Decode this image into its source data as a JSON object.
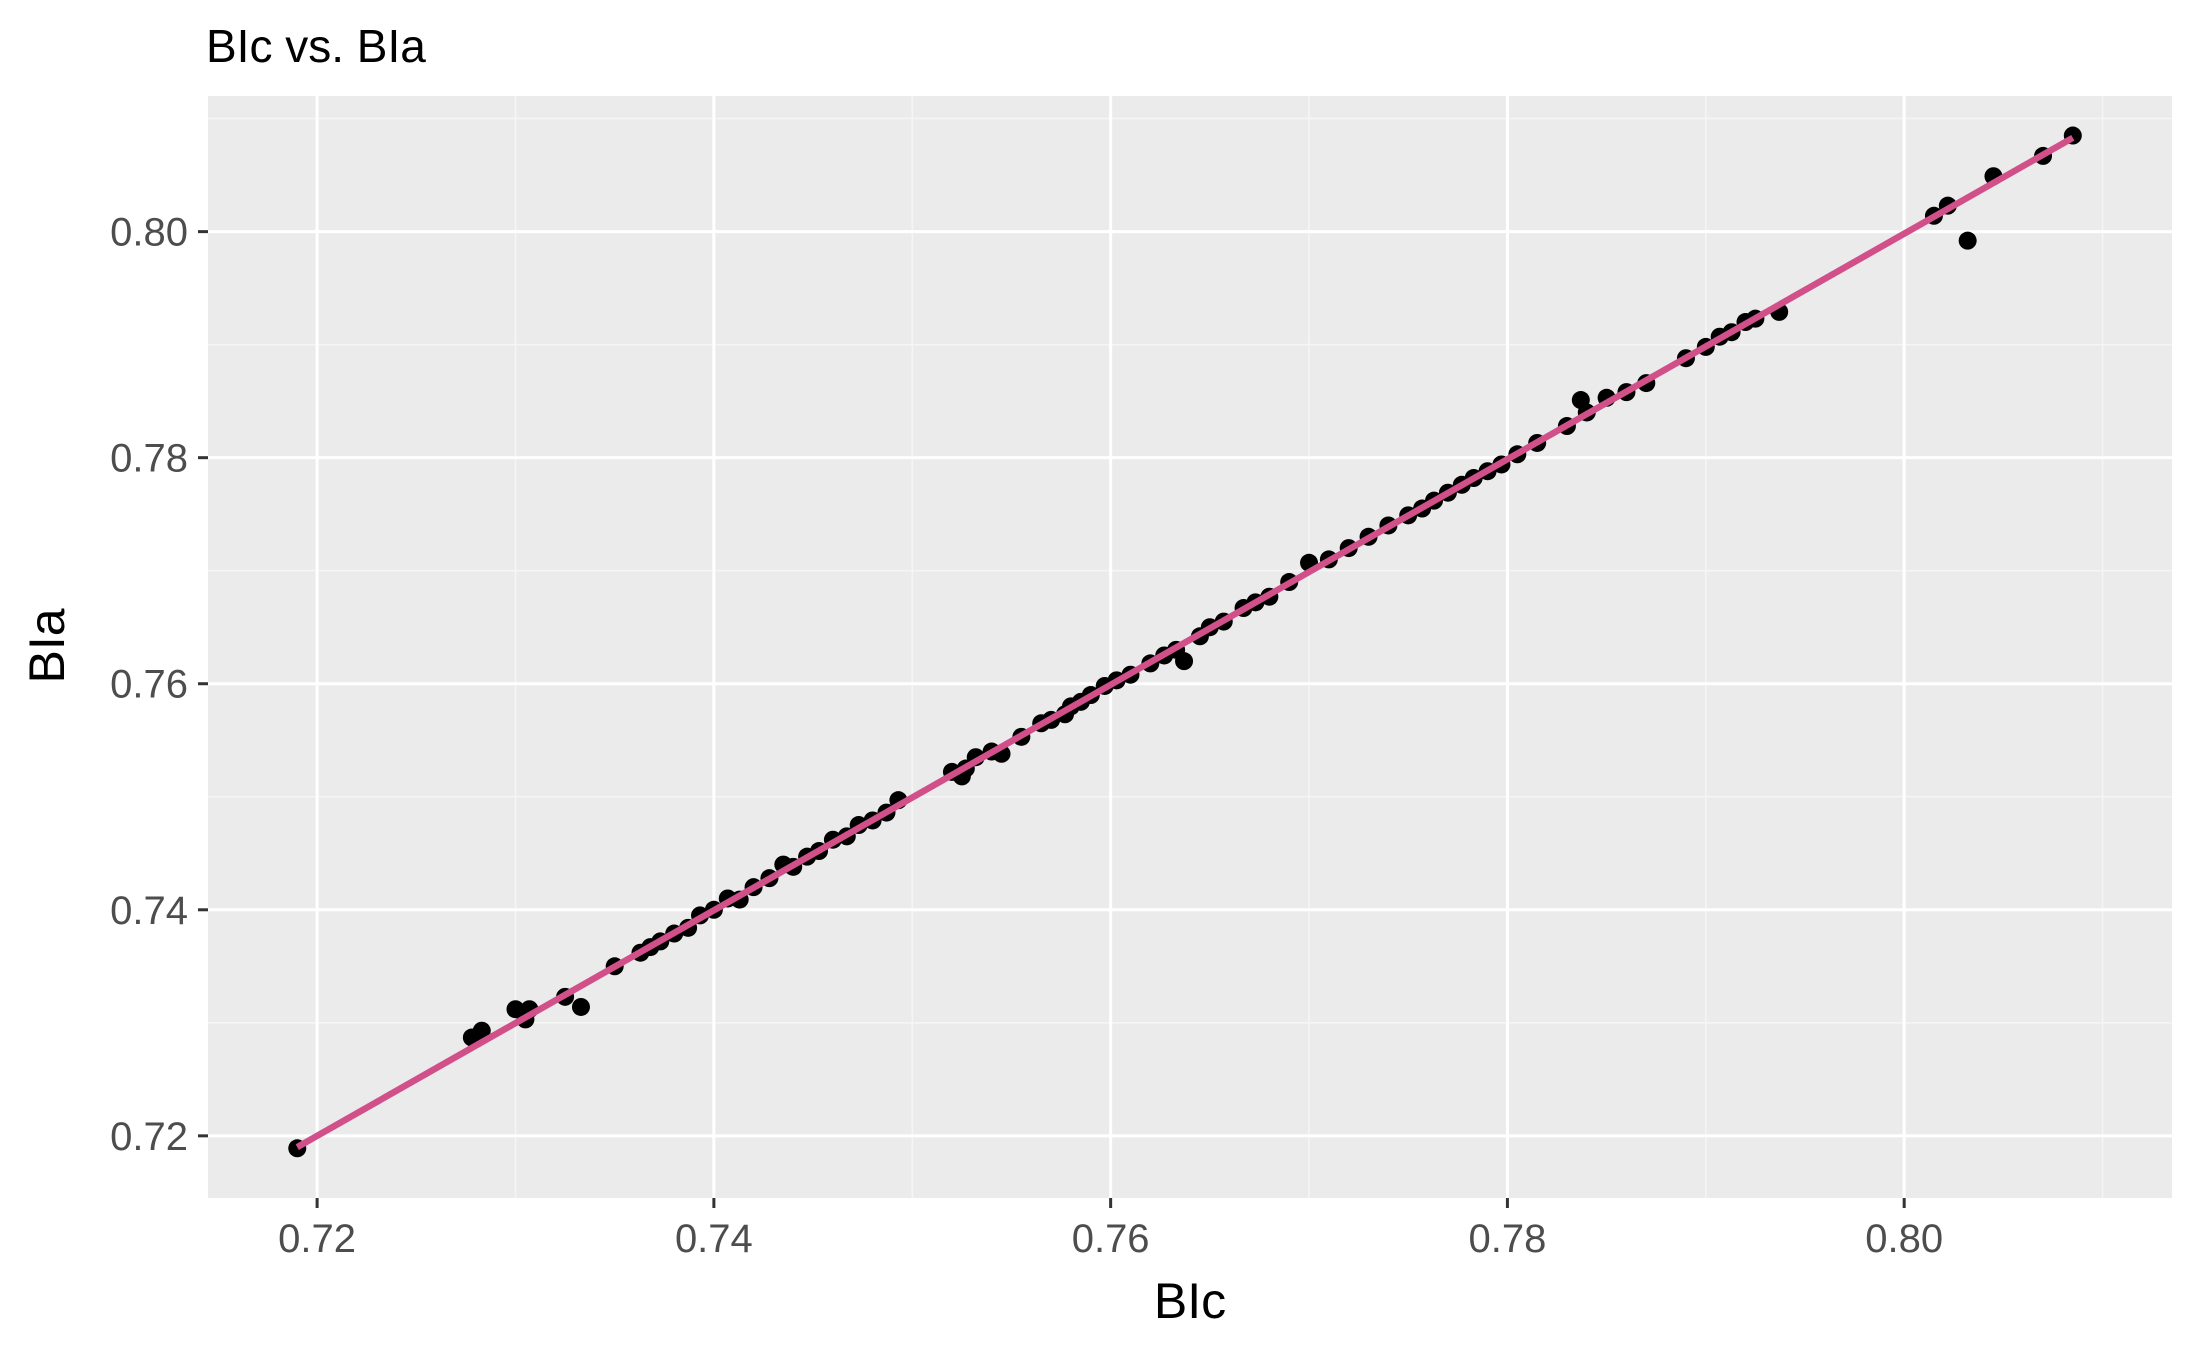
{
  "chart_data": {
    "type": "scatter",
    "title": "BIc vs. BIa",
    "xlabel": "BIc",
    "ylabel": "BIa",
    "xlim": [
      0.7145,
      0.8135
    ],
    "ylim": [
      0.7145,
      0.812
    ],
    "x_ticks": [
      0.72,
      0.74,
      0.76,
      0.78,
      0.8
    ],
    "x_tick_labels": [
      "0.72",
      "0.74",
      "0.76",
      "0.78",
      "0.80"
    ],
    "y_ticks": [
      0.72,
      0.74,
      0.76,
      0.78,
      0.8
    ],
    "y_tick_labels": [
      "0.72",
      "0.74",
      "0.76",
      "0.78",
      "0.80"
    ],
    "grid": true,
    "legend": "none",
    "colors": {
      "panel_background": "#ebebeb",
      "grid_major": "#ffffff",
      "grid_minor": "#f5f5f5",
      "points": "#000000",
      "fit_line": "#d1508a"
    },
    "series": [
      {
        "kind": "points",
        "x": [
          0.719,
          0.7278,
          0.7283,
          0.73,
          0.7305,
          0.7307,
          0.7325,
          0.7333,
          0.735,
          0.7363,
          0.7368,
          0.7373,
          0.738,
          0.7387,
          0.7393,
          0.74,
          0.7407,
          0.7413,
          0.742,
          0.7428,
          0.7435,
          0.744,
          0.7447,
          0.7453,
          0.746,
          0.7467,
          0.7473,
          0.748,
          0.7487,
          0.7493,
          0.752,
          0.7525,
          0.7527,
          0.7532,
          0.754,
          0.7545,
          0.7555,
          0.7565,
          0.757,
          0.7577,
          0.758,
          0.7585,
          0.759,
          0.7597,
          0.7603,
          0.761,
          0.762,
          0.7627,
          0.7633,
          0.7637,
          0.7645,
          0.765,
          0.7657,
          0.7667,
          0.7673,
          0.768,
          0.769,
          0.77,
          0.771,
          0.772,
          0.773,
          0.774,
          0.775,
          0.7757,
          0.7763,
          0.777,
          0.7777,
          0.7783,
          0.779,
          0.7797,
          0.7805,
          0.7815,
          0.783,
          0.7837,
          0.784,
          0.785,
          0.786,
          0.787,
          0.789,
          0.79,
          0.7907,
          0.7913,
          0.792,
          0.7925,
          0.7937,
          0.8015,
          0.8022,
          0.8032,
          0.8045,
          0.807,
          0.8085
        ],
        "y": [
          0.7189,
          0.7287,
          0.7293,
          0.7312,
          0.7303,
          0.7312,
          0.7323,
          0.7314,
          0.735,
          0.7362,
          0.7367,
          0.7372,
          0.7379,
          0.7384,
          0.7395,
          0.74,
          0.741,
          0.7409,
          0.742,
          0.7428,
          0.744,
          0.7438,
          0.7447,
          0.7452,
          0.7462,
          0.7465,
          0.7475,
          0.7479,
          0.7486,
          0.7497,
          0.7522,
          0.7518,
          0.7525,
          0.7535,
          0.754,
          0.7538,
          0.7553,
          0.7565,
          0.7568,
          0.7573,
          0.758,
          0.7584,
          0.759,
          0.7598,
          0.7603,
          0.7608,
          0.7618,
          0.7625,
          0.763,
          0.762,
          0.7642,
          0.765,
          0.7655,
          0.7667,
          0.7672,
          0.7677,
          0.769,
          0.7707,
          0.771,
          0.772,
          0.773,
          0.774,
          0.7749,
          0.7755,
          0.7762,
          0.7769,
          0.7776,
          0.7782,
          0.7788,
          0.7794,
          0.7803,
          0.7813,
          0.7828,
          0.7851,
          0.784,
          0.7853,
          0.7858,
          0.7866,
          0.7888,
          0.7898,
          0.7907,
          0.7911,
          0.792,
          0.7923,
          0.7929,
          0.8014,
          0.8023,
          0.7992,
          0.8049,
          0.8067,
          0.8085
        ]
      },
      {
        "kind": "line",
        "x": [
          0.719,
          0.8085
        ],
        "y": [
          0.719,
          0.8083
        ]
      }
    ]
  }
}
